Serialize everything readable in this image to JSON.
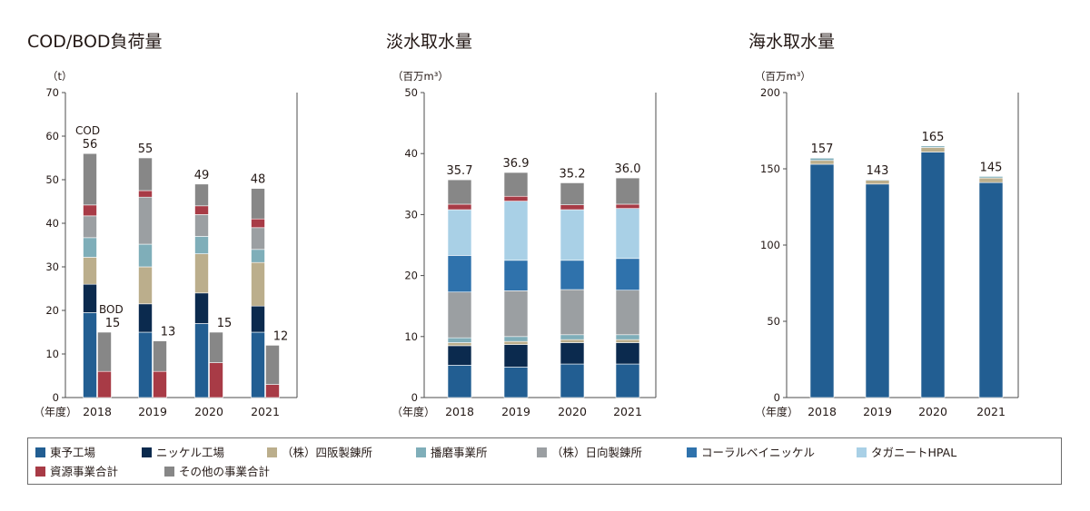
{
  "colors": {
    "higashiyo": "#225e92",
    "nickel": "#0b2a4e",
    "shisaka": "#bbae8c",
    "harima": "#7faeb9",
    "hyuga": "#9b9fa2",
    "coral": "#2f72ac",
    "taganito": "#a9d0e6",
    "shigen": "#a83b46",
    "other": "#878787"
  },
  "legend": [
    {
      "key": "higashiyo",
      "label": "東予工場"
    },
    {
      "key": "nickel",
      "label": "ニッケル工場"
    },
    {
      "key": "shisaka",
      "label": "（株）四阪製錬所"
    },
    {
      "key": "harima",
      "label": "播磨事業所"
    },
    {
      "key": "hyuga",
      "label": "（株）日向製錬所"
    },
    {
      "key": "coral",
      "label": "コーラルベイニッケル"
    },
    {
      "key": "taganito",
      "label": "タガニートHPAL"
    },
    {
      "key": "shigen",
      "label": "資源事業合計"
    },
    {
      "key": "other",
      "label": "その他の事業合計"
    }
  ],
  "chart_data": [
    {
      "type": "bar",
      "title": "COD/BOD負荷量",
      "ylabel": "（t）",
      "xlabel": "（年度）",
      "categories": [
        "2018",
        "2019",
        "2020",
        "2021"
      ],
      "ylim": [
        0,
        70
      ],
      "yticks": [
        0,
        10,
        20,
        30,
        40,
        50,
        60,
        70
      ],
      "stacked": true,
      "groups": [
        {
          "label": "COD",
          "totals": [
            "56",
            "55",
            "49",
            "48"
          ],
          "series": [
            {
              "name": "東予工場",
              "color_key": "higashiyo",
              "values": [
                19.5,
                15,
                17,
                15
              ]
            },
            {
              "name": "ニッケル工場",
              "color_key": "nickel",
              "values": [
                6.5,
                6.5,
                7,
                6
              ]
            },
            {
              "name": "（株）四阪製錬所",
              "color_key": "shisaka",
              "values": [
                6.2,
                8.5,
                9,
                10
              ]
            },
            {
              "name": "播磨事業所",
              "color_key": "harima",
              "values": [
                4.5,
                5.2,
                4,
                3
              ]
            },
            {
              "name": "（株）日向製錬所",
              "color_key": "hyuga",
              "values": [
                5,
                10.8,
                5,
                5
              ]
            },
            {
              "name": "資源事業合計",
              "color_key": "shigen",
              "values": [
                2.5,
                1.5,
                2,
                2
              ]
            },
            {
              "name": "その他の事業合計",
              "color_key": "other",
              "values": [
                11.8,
                7.5,
                5,
                7
              ]
            }
          ]
        },
        {
          "label": "BOD",
          "totals": [
            "15",
            "13",
            "15",
            "12"
          ],
          "series": [
            {
              "name": "資源事業合計",
              "color_key": "shigen",
              "values": [
                6,
                6,
                8,
                3
              ]
            },
            {
              "name": "その他の事業合計",
              "color_key": "other",
              "values": [
                9,
                7,
                7,
                9
              ]
            }
          ]
        }
      ]
    },
    {
      "type": "bar",
      "title": "淡水取水量",
      "ylabel": "（百万m³）",
      "xlabel": "（年度）",
      "categories": [
        "2018",
        "2019",
        "2020",
        "2021"
      ],
      "ylim": [
        0,
        50
      ],
      "yticks": [
        0,
        10,
        20,
        30,
        40,
        50
      ],
      "stacked": true,
      "totals": [
        "35.7",
        "36.9",
        "35.2",
        "36.0"
      ],
      "series": [
        {
          "name": "東予工場",
          "color_key": "higashiyo",
          "values": [
            5.3,
            5,
            5.5,
            5.5
          ]
        },
        {
          "name": "ニッケル工場",
          "color_key": "nickel",
          "values": [
            3.2,
            3.7,
            3.5,
            3.5
          ]
        },
        {
          "name": "（株）四阪製錬所",
          "color_key": "shisaka",
          "values": [
            0.5,
            0.5,
            0.5,
            0.5
          ]
        },
        {
          "name": "播磨事業所",
          "color_key": "harima",
          "values": [
            0.8,
            0.8,
            0.8,
            0.8
          ]
        },
        {
          "name": "（株）日向製錬所",
          "color_key": "hyuga",
          "values": [
            7.5,
            7.5,
            7.4,
            7.3
          ]
        },
        {
          "name": "コーラルベイニッケル",
          "color_key": "coral",
          "values": [
            6,
            5,
            4.8,
            5.2
          ]
        },
        {
          "name": "タガニートHPAL",
          "color_key": "taganito",
          "values": [
            7.5,
            9.7,
            8.3,
            8.2
          ]
        },
        {
          "name": "資源事業合計",
          "color_key": "shigen",
          "values": [
            0.9,
            0.8,
            0.8,
            0.7
          ]
        },
        {
          "name": "その他の事業合計",
          "color_key": "other",
          "values": [
            4,
            3.9,
            3.6,
            4.3
          ]
        }
      ]
    },
    {
      "type": "bar",
      "title": "海水取水量",
      "ylabel": "（百万m³）",
      "xlabel": "（年度）",
      "categories": [
        "2018",
        "2019",
        "2020",
        "2021"
      ],
      "ylim": [
        0,
        200
      ],
      "yticks": [
        0,
        50,
        100,
        150,
        200
      ],
      "stacked": true,
      "totals": [
        "157",
        "143",
        "165",
        "145"
      ],
      "series": [
        {
          "name": "東予工場",
          "color_key": "higashiyo",
          "values": [
            153,
            140,
            161,
            141
          ]
        },
        {
          "name": "（株）四阪製錬所",
          "color_key": "shisaka",
          "values": [
            2.5,
            2.5,
            3,
            3
          ]
        },
        {
          "name": "播磨事業所",
          "color_key": "harima",
          "values": [
            1.5,
            0.5,
            1,
            1
          ]
        }
      ]
    }
  ]
}
